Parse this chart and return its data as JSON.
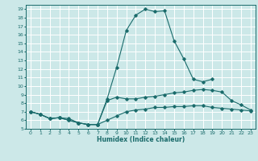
{
  "xlabel": "Humidex (Indice chaleur)",
  "background_color": "#cce8e8",
  "grid_color": "#ffffff",
  "line_color": "#1a6b6b",
  "xlim": [
    -0.5,
    23.5
  ],
  "ylim": [
    5,
    19.5
  ],
  "xticks": [
    0,
    1,
    2,
    3,
    4,
    5,
    6,
    7,
    8,
    9,
    10,
    11,
    12,
    13,
    14,
    15,
    16,
    17,
    18,
    19,
    20,
    21,
    22,
    23
  ],
  "yticks": [
    5,
    6,
    7,
    8,
    9,
    10,
    11,
    12,
    13,
    14,
    15,
    16,
    17,
    18,
    19
  ],
  "series": [
    {
      "x": [
        0,
        1,
        2,
        3,
        4,
        5,
        6,
        7,
        8,
        9,
        10,
        11,
        12,
        13,
        14,
        15,
        16,
        17,
        18,
        19
      ],
      "y": [
        7.0,
        6.7,
        6.2,
        6.3,
        6.2,
        5.7,
        5.5,
        5.5,
        8.5,
        12.2,
        16.5,
        18.3,
        19.0,
        18.7,
        18.8,
        15.3,
        13.2,
        10.8,
        10.5,
        10.8
      ]
    },
    {
      "x": [
        0,
        1,
        2,
        3,
        4,
        5,
        6,
        7,
        8,
        9,
        10,
        11,
        12,
        13,
        14,
        15,
        16,
        17,
        18,
        19,
        20,
        21,
        22,
        23
      ],
      "y": [
        7.0,
        6.7,
        6.2,
        6.3,
        6.0,
        5.7,
        5.5,
        5.5,
        8.3,
        8.7,
        8.5,
        8.5,
        8.7,
        8.8,
        9.0,
        9.2,
        9.3,
        9.5,
        9.6,
        9.5,
        9.3,
        8.3,
        7.8,
        7.2
      ]
    },
    {
      "x": [
        0,
        1,
        2,
        3,
        4,
        5,
        6,
        7,
        8,
        9,
        10,
        11,
        12,
        13,
        14,
        15,
        16,
        17,
        18,
        19,
        20,
        21,
        22,
        23
      ],
      "y": [
        7.0,
        6.7,
        6.2,
        6.3,
        6.0,
        5.7,
        5.5,
        5.5,
        6.0,
        6.5,
        7.0,
        7.2,
        7.3,
        7.5,
        7.5,
        7.6,
        7.6,
        7.7,
        7.7,
        7.5,
        7.4,
        7.3,
        7.2,
        7.1
      ]
    }
  ]
}
